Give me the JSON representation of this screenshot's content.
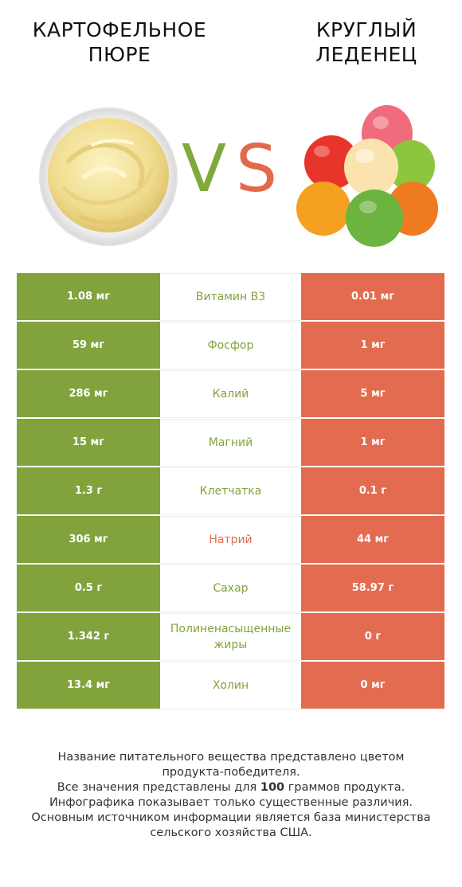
{
  "colors": {
    "winner_left": "#82a33c",
    "winner_right": "#e36b4f",
    "vs_v": "#7fa93a",
    "vs_s": "#e26a4c"
  },
  "header": {
    "left_title_line1": "КАРТОФЕЛЬНОЕ",
    "left_title_line2": "ПЮРЕ",
    "right_title_line1": "КРУГЛЫЙ",
    "right_title_line2": "ЛЕДЕНЕЦ",
    "vs_v": "V",
    "vs_s": "S"
  },
  "rows": [
    {
      "left": "1.08 мг",
      "nutrient": "Витамин B3",
      "right": "0.01 мг",
      "winner": "left"
    },
    {
      "left": "59 мг",
      "nutrient": "Фосфор",
      "right": "1 мг",
      "winner": "left"
    },
    {
      "left": "286 мг",
      "nutrient": "Калий",
      "right": "5 мг",
      "winner": "left"
    },
    {
      "left": "15 мг",
      "nutrient": "Магний",
      "right": "1 мг",
      "winner": "left"
    },
    {
      "left": "1.3 г",
      "nutrient": "Клетчатка",
      "right": "0.1 г",
      "winner": "left"
    },
    {
      "left": "306 мг",
      "nutrient": "Натрий",
      "right": "44 мг",
      "winner": "right"
    },
    {
      "left": "0.5 г",
      "nutrient": "Сахар",
      "right": "58.97 г",
      "winner": "left"
    },
    {
      "left": "1.342 г",
      "nutrient": "Полиненасыщенные жиры",
      "right": "0 г",
      "winner": "left"
    },
    {
      "left": "13.4 мг",
      "nutrient": "Холин",
      "right": "0 мг",
      "winner": "left"
    }
  ],
  "footer": {
    "line1": "Название питательного вещества представлено цветом",
    "line2": "продукта-победителя.",
    "line3_pre": "Все значения представлены для ",
    "line3_bold": "100",
    "line3_post": " граммов продукта.",
    "line4": "Инфографика показывает только существенные различия.",
    "line5": "Основным источником информации является база министерства",
    "line6": "сельского хозяйства США."
  }
}
